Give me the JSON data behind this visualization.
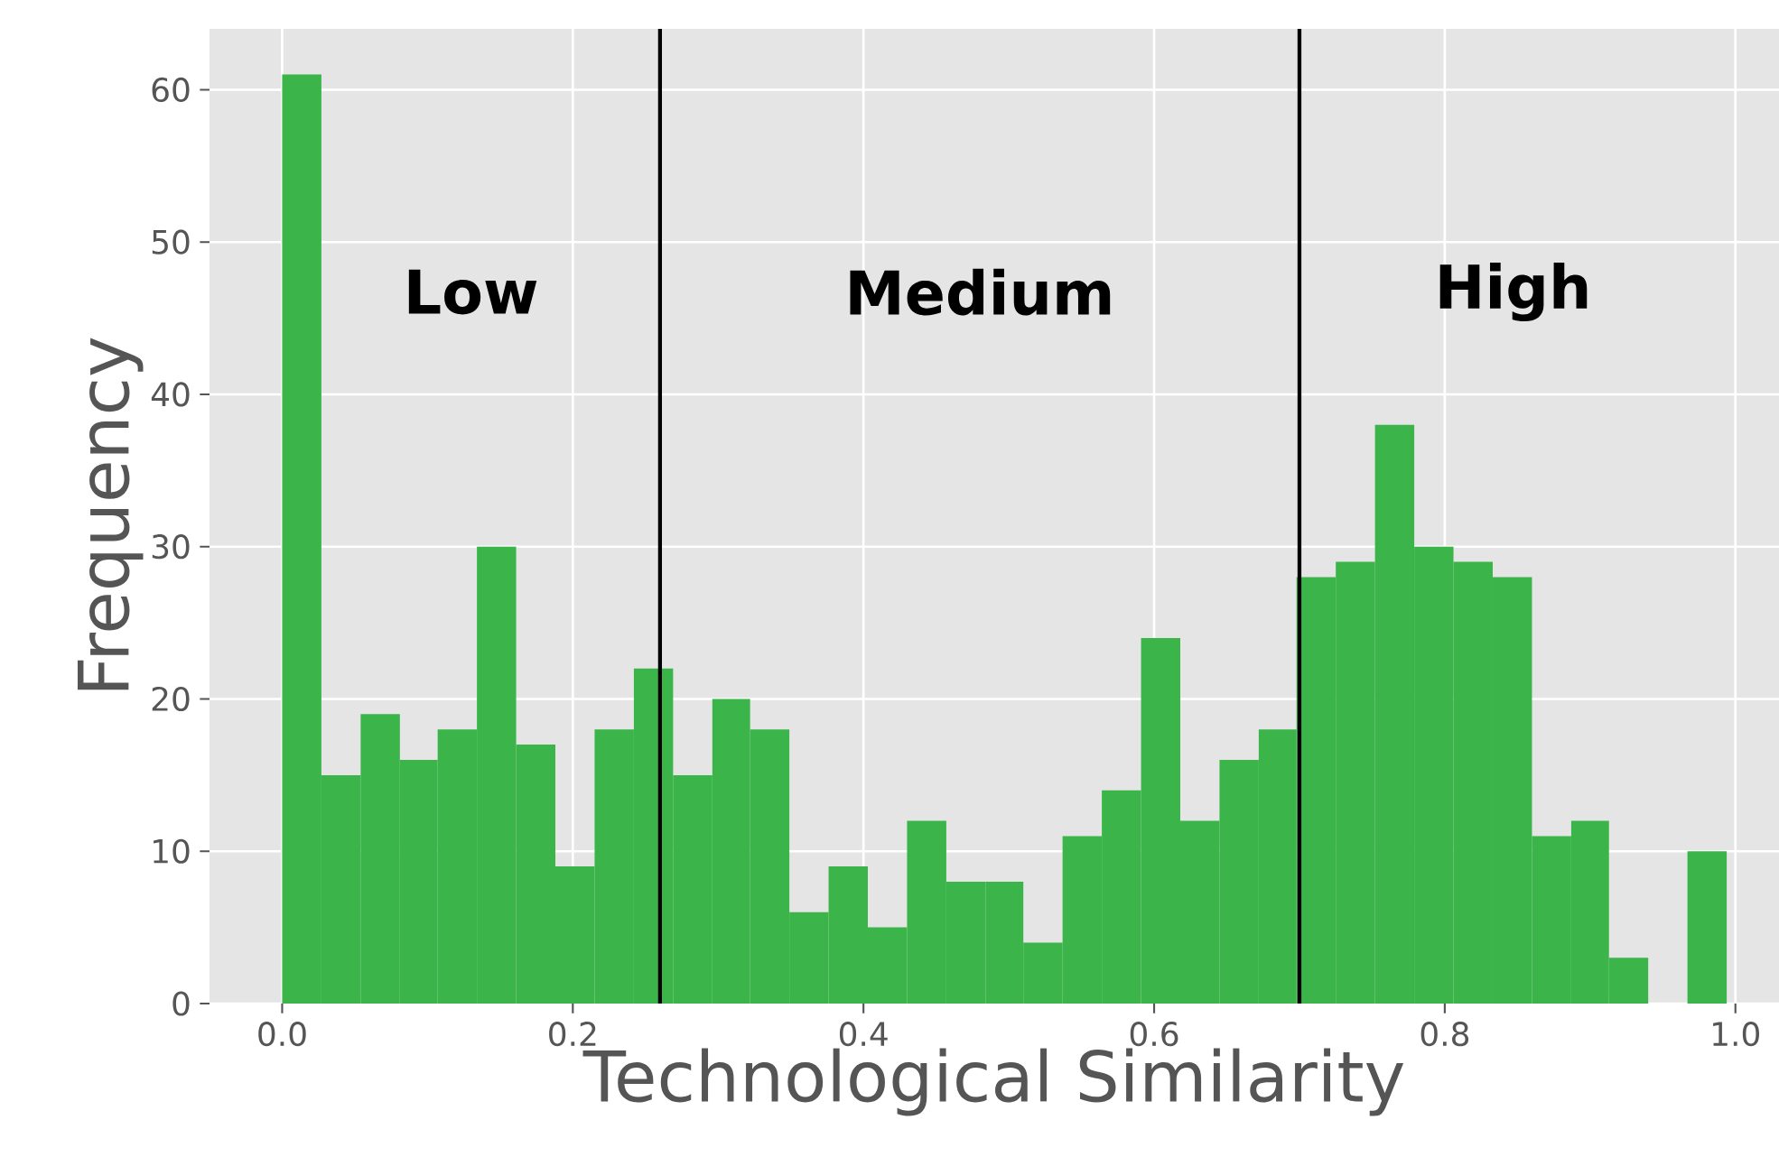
{
  "chart_data": {
    "type": "histogram",
    "xlabel": "Technological Similarity",
    "ylabel": "Frequency",
    "bins": [
      0,
      0.027,
      0.054,
      0.081,
      0.107,
      0.134,
      0.161,
      0.188,
      0.215,
      0.242,
      0.269,
      0.296,
      0.322,
      0.349,
      0.376,
      0.403,
      0.43,
      0.457,
      0.484,
      0.51,
      0.537,
      0.564,
      0.591,
      0.618,
      0.645,
      0.672,
      0.698,
      0.725,
      0.752,
      0.779,
      0.806,
      0.833,
      0.86,
      0.887,
      0.913,
      0.94,
      0.967,
      0.994
    ],
    "values": [
      61,
      15,
      19,
      16,
      18,
      30,
      17,
      9,
      18,
      22,
      15,
      20,
      18,
      6,
      9,
      5,
      12,
      8,
      8,
      4,
      11,
      14,
      24,
      12,
      16,
      18,
      28,
      29,
      38,
      30,
      29,
      28,
      11,
      12,
      3,
      0,
      10
    ],
    "color": "#3bb54a",
    "xlim": [
      -0.05,
      1.03
    ],
    "ylim": [
      0,
      64
    ],
    "xticks": [
      {
        "value": 0,
        "label": "0.0"
      },
      0.2,
      0.4,
      0.6,
      0.8,
      {
        "value": 1,
        "label": "1.0"
      }
    ],
    "yticks": [
      0,
      10,
      20,
      30,
      40,
      50,
      60
    ],
    "grid": true,
    "ref_lines": [
      {
        "axis": "x",
        "value": 0.26,
        "color": "#000000"
      },
      {
        "axis": "x",
        "value": 0.7,
        "color": "#000000"
      }
    ],
    "annotations": [
      "Low",
      "Medium",
      "High"
    ]
  }
}
